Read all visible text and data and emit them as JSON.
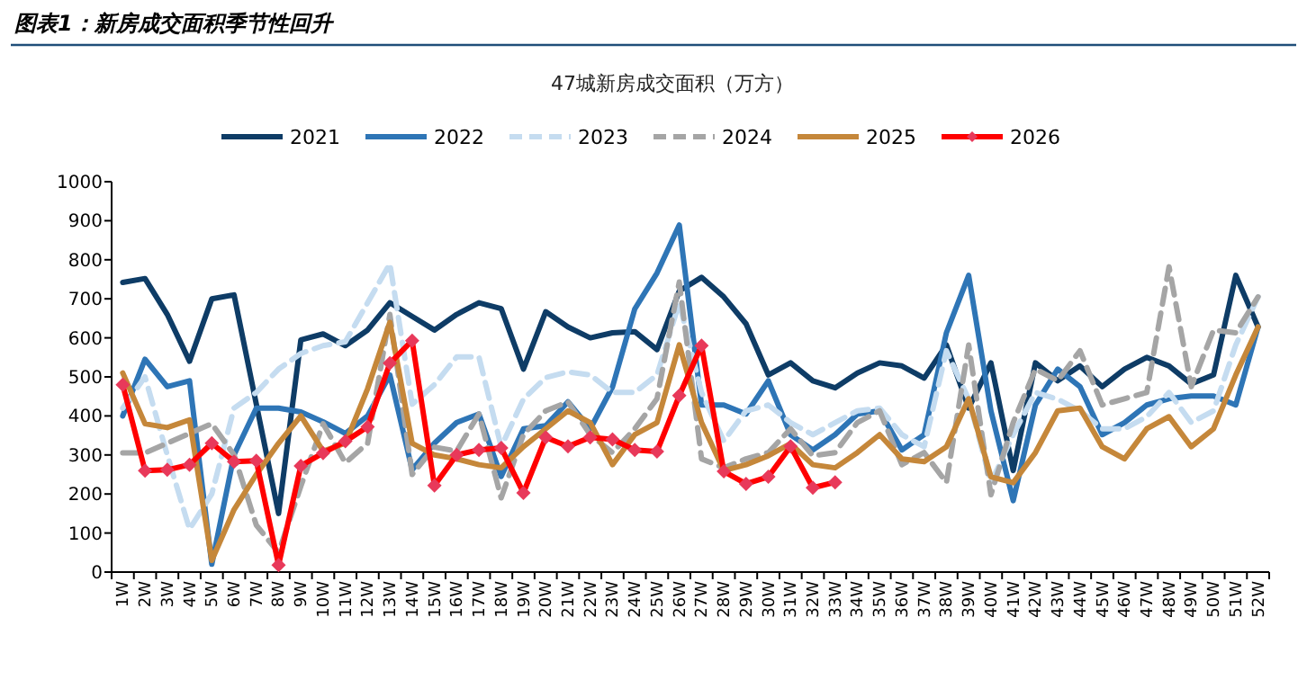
{
  "chart_data": {
    "type": "line",
    "title": "图表1：新房成交面积季节性回升",
    "subtitle": "47城新房成交面积（万方）",
    "categories": [
      "1W",
      "2W",
      "3W",
      "4W",
      "5W",
      "6W",
      "7W",
      "8W",
      "9W",
      "10W",
      "11W",
      "12W",
      "13W",
      "14W",
      "15W",
      "16W",
      "17W",
      "18W",
      "19W",
      "20W",
      "21W",
      "22W",
      "23W",
      "24W",
      "25W",
      "26W",
      "27W",
      "28W",
      "29W",
      "30W",
      "31W",
      "32W",
      "33W",
      "34W",
      "35W",
      "36W",
      "37W",
      "38W",
      "39W",
      "40W",
      "41W",
      "42W",
      "43W",
      "44W",
      "45W",
      "46W",
      "47W",
      "48W",
      "49W",
      "50W",
      "51W",
      "52W"
    ],
    "ylim": [
      0,
      1000
    ],
    "yticks": [
      0,
      100,
      200,
      300,
      400,
      500,
      600,
      700,
      800,
      900,
      1000
    ],
    "grid": false,
    "legend": "top",
    "series": [
      {
        "name": "2021",
        "color": "#0e3c66",
        "line_style": "solid",
        "marker": "none",
        "values": [
          742,
          752,
          660,
          540,
          700,
          710,
          430,
          150,
          595,
          610,
          580,
          620,
          690,
          655,
          620,
          660,
          690,
          675,
          520,
          667,
          628,
          600,
          613,
          616,
          570,
          720,
          755,
          705,
          636,
          505,
          536,
          490,
          472,
          510,
          536,
          528,
          497,
          582,
          420,
          536,
          260,
          536,
          490,
          528,
          475,
          520,
          550,
          528,
          482,
          505,
          760,
          628
        ]
      },
      {
        "name": "2022",
        "color": "#2e75b6",
        "line_style": "solid",
        "marker": "none",
        "values": [
          400,
          545,
          475,
          490,
          20,
          300,
          420,
          420,
          410,
          385,
          355,
          400,
          505,
          262,
          330,
          383,
          405,
          245,
          367,
          375,
          436,
          367,
          474,
          674,
          766,
          889,
          428,
          428,
          405,
          490,
          352,
          313,
          352,
          405,
          413,
          313,
          352,
          613,
          760,
          413,
          183,
          428,
          520,
          475,
          352,
          383,
          428,
          444,
          451,
          451,
          428,
          628
        ]
      },
      {
        "name": "2023",
        "color": "#c5dcf0",
        "line_style": "dashed",
        "marker": "none",
        "values": [
          420,
          500,
          300,
          110,
          200,
          420,
          460,
          520,
          560,
          580,
          590,
          690,
          790,
          430,
          480,
          551,
          551,
          321,
          443,
          498,
          513,
          505,
          460,
          460,
          505,
          690,
          460,
          336,
          413,
          428,
          383,
          352,
          383,
          413,
          420,
          352,
          321,
          567,
          443,
          229,
          352,
          460,
          443,
          413,
          367,
          367,
          398,
          460,
          383,
          413,
          582,
          705
        ]
      },
      {
        "name": "2024",
        "color": "#a5a5a5",
        "line_style": "dashed",
        "marker": "none",
        "values": [
          305,
          305,
          330,
          355,
          380,
          300,
          120,
          50,
          220,
          380,
          280,
          330,
          660,
          250,
          320,
          310,
          405,
          190,
          352,
          413,
          436,
          352,
          306,
          367,
          444,
          743,
          290,
          267,
          290,
          306,
          367,
          298,
          306,
          383,
          413,
          275,
          306,
          229,
          582,
          198,
          383,
          520,
          490,
          567,
          428,
          444,
          460,
          782,
          475,
          620,
          613,
          705
        ]
      },
      {
        "name": "2025",
        "color": "#c5873a",
        "line_style": "solid",
        "marker": "none",
        "values": [
          510,
          380,
          370,
          390,
          30,
          160,
          250,
          330,
          400,
          310,
          330,
          470,
          640,
          330,
          300,
          290,
          275,
          267,
          321,
          367,
          413,
          383,
          275,
          352,
          383,
          582,
          383,
          260,
          275,
          298,
          329,
          275,
          267,
          306,
          352,
          290,
          283,
          321,
          444,
          244,
          229,
          306,
          413,
          420,
          321,
          290,
          367,
          398,
          321,
          367,
          505,
          628
        ]
      },
      {
        "name": "2026",
        "color": "#ff0000",
        "line_style": "solid",
        "marker": "diamond",
        "values": [
          480,
          260,
          262,
          275,
          330,
          283,
          285,
          18,
          272,
          305,
          335,
          372,
          535,
          593,
          222,
          300,
          313,
          318,
          203,
          345,
          322,
          345,
          340,
          313,
          309,
          452,
          580,
          258,
          226,
          244,
          322,
          216,
          230,
          null,
          null,
          null,
          null,
          null,
          null,
          null,
          null,
          null,
          null,
          null,
          null,
          null,
          null,
          null,
          null,
          null,
          null,
          null
        ]
      }
    ]
  }
}
